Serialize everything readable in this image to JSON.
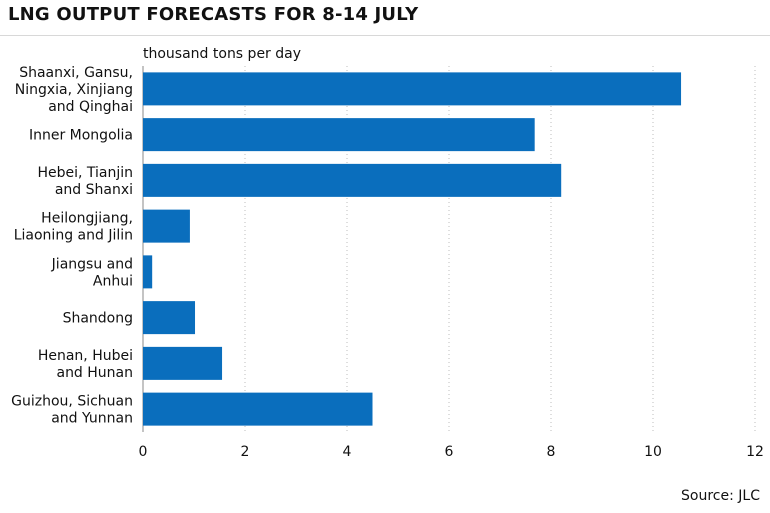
{
  "title": "LNG OUTPUT FORECASTS FOR 8-14 JULY",
  "source": "Source: JLC",
  "colors": {
    "bar": "#0a6ebd",
    "grid": "#bdbdbd"
  },
  "chart_data": {
    "type": "bar",
    "orientation": "horizontal",
    "title": "LNG OUTPUT FORECASTS FOR 8-14 JULY",
    "unit_label": "thousand tons per day",
    "xlim": [
      0,
      12
    ],
    "xticks": [
      0,
      2,
      4,
      6,
      8,
      10,
      12
    ],
    "grid": "vertical dotted",
    "categories": [
      [
        "Shaanxi, Gansu,",
        "Ningxia, Xinjiang",
        "and Qinghai"
      ],
      [
        "Inner Mongolia"
      ],
      [
        "Hebei, Tianjin",
        "and Shanxi"
      ],
      [
        "Heilongjiang,",
        "Liaoning and Jilin"
      ],
      [
        "Jiangsu and",
        "Anhui"
      ],
      [
        "Shandong"
      ],
      [
        "Henan, Hubei",
        "and Hunan"
      ],
      [
        "Guizhou, Sichuan",
        "and Yunnan"
      ]
    ],
    "values": [
      10.55,
      7.68,
      8.2,
      0.92,
      0.18,
      1.02,
      1.55,
      4.5
    ]
  }
}
